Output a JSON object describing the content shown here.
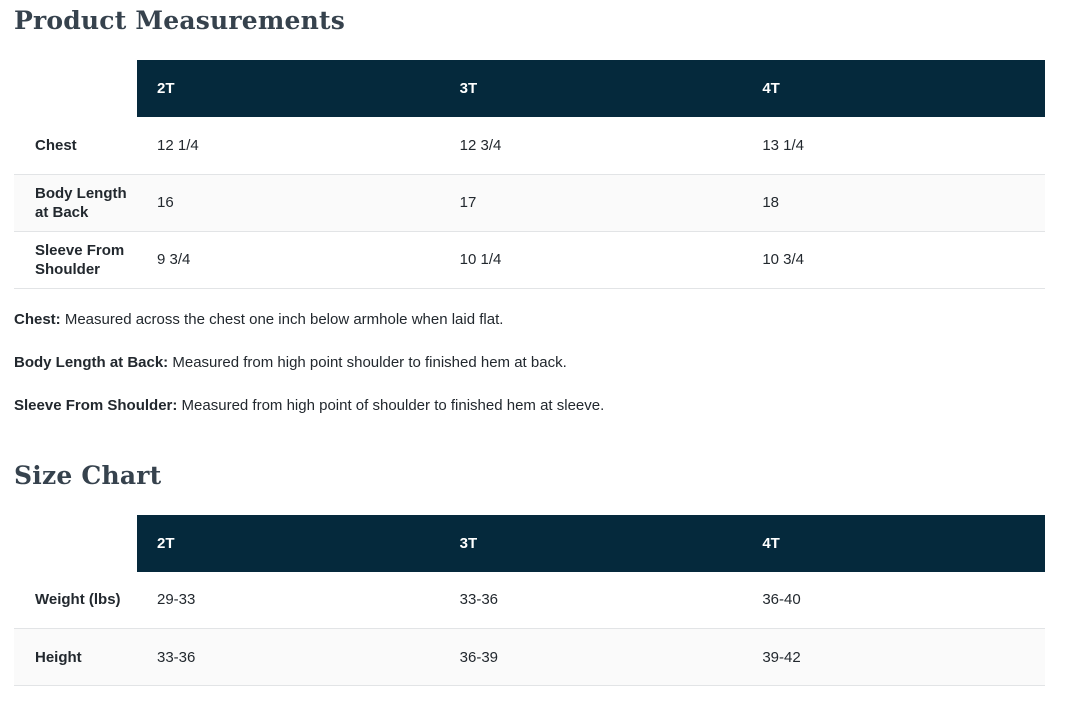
{
  "headings": {
    "product_measurements": "Product Measurements",
    "size_chart": "Size Chart"
  },
  "measurements_table": {
    "columns": [
      "2T",
      "3T",
      "4T"
    ],
    "rows": [
      {
        "label": "Chest",
        "values": [
          "12 1/4",
          "12 3/4",
          "13 1/4"
        ]
      },
      {
        "label": "Body Length at Back",
        "values": [
          "16",
          "17",
          "18"
        ]
      },
      {
        "label": "Sleeve From Shoulder",
        "values": [
          "9 3/4",
          "10 1/4",
          "10 3/4"
        ]
      }
    ]
  },
  "measurement_notes": [
    {
      "term": "Chest:",
      "description": "Measured across the chest one inch below armhole when laid flat."
    },
    {
      "term": "Body Length at Back:",
      "description": "Measured from high point shoulder to finished hem at back."
    },
    {
      "term": "Sleeve From Shoulder:",
      "description": "Measured from high point of shoulder to finished hem at sleeve."
    }
  ],
  "size_chart_table": {
    "columns": [
      "2T",
      "3T",
      "4T"
    ],
    "rows": [
      {
        "label": "Weight (lbs)",
        "values": [
          "29-33",
          "33-36",
          "36-40"
        ]
      },
      {
        "label": "Height",
        "values": [
          "33-36",
          "36-39",
          "39-42"
        ]
      }
    ]
  },
  "colors": {
    "table_header_bg": "#05293c",
    "table_header_text": "#ffffff",
    "row_alt_bg": "#fafafa",
    "border": "#e2e4e6",
    "heading_text": "#36424d",
    "body_text": "#22282e"
  }
}
